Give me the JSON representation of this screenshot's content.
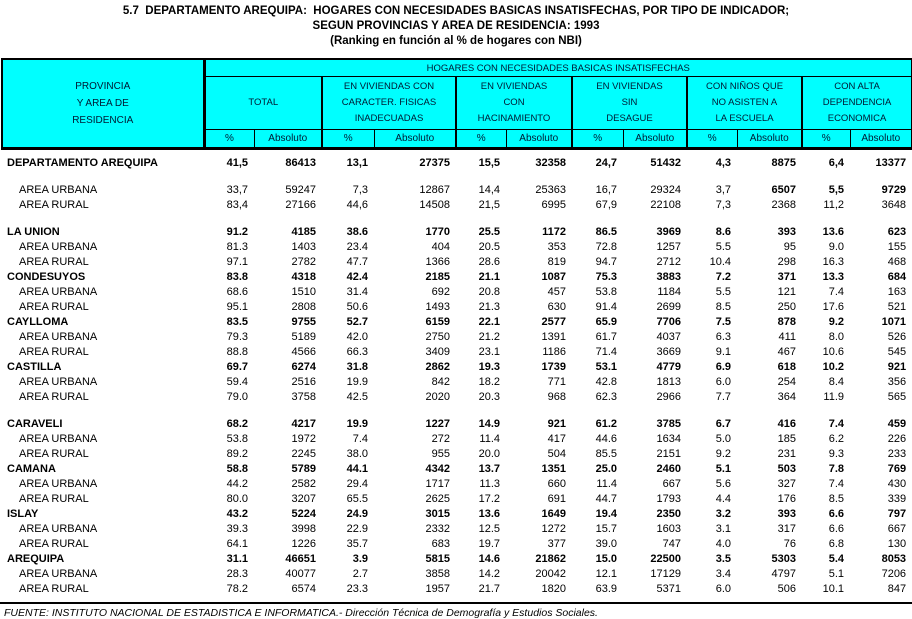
{
  "title": {
    "line1": "5.7  DEPARTAMENTO AREQUIPA:  HOGARES CON NECESIDADES BASICAS INSATISFECHAS, POR TIPO DE INDICADOR;",
    "line2": "SEGUN PROVINCIAS Y AREA DE RESIDENCIA: 1993",
    "line3": "(Ranking en función al % de hogares con NBI)"
  },
  "colors": {
    "header_bg": "#00FFFF",
    "header_text": "#001933",
    "body_text": "#000000",
    "border": "#000000"
  },
  "table": {
    "row_header_lines": [
      "PROVINCIA",
      "Y AREA DE",
      "RESIDENCIA"
    ],
    "super_header": "HOGARES CON NECESIDADES BASICAS INSATISFECHAS",
    "groups": [
      {
        "lines": [
          "TOTAL"
        ]
      },
      {
        "lines": [
          "EN VIVIENDAS CON",
          "CARACTER. FISICAS",
          "INADECUADAS"
        ]
      },
      {
        "lines": [
          "EN VIVIENDAS",
          "CON",
          "HACINAMIENTO"
        ]
      },
      {
        "lines": [
          "EN VIVIENDAS",
          "SIN",
          "DESAGUE"
        ]
      },
      {
        "lines": [
          "CON NIÑOS QUE",
          "NO ASISTEN A",
          "LA ESCUELA"
        ]
      },
      {
        "lines": [
          "CON ALTA",
          "DEPENDENCIA",
          "ECONOMICA"
        ]
      }
    ],
    "sub_headers": [
      "%",
      "Absoluto",
      "%",
      "Absoluto",
      "%",
      "Absoluto",
      "%",
      "Absoluto",
      "%",
      "Absoluto",
      "%",
      "Absoluto"
    ],
    "rows": [
      {
        "label": "DEPARTAMENTO AREQUIPA",
        "bold": true,
        "indent": 0,
        "values": [
          "41,5",
          "86413",
          "13,1",
          "27375",
          "15,5",
          "32358",
          "24,7",
          "51432",
          "4,3",
          "8875",
          "6,4",
          "13377"
        ]
      },
      {
        "type": "gap"
      },
      {
        "label": "AREA URBANA",
        "bold": false,
        "indent": 1,
        "bold_cells": [
          9,
          10,
          11
        ],
        "values": [
          "33,7",
          "59247",
          "7,3",
          "12867",
          "14,4",
          "25363",
          "16,7",
          "29324",
          "3,7",
          "6507",
          "5,5",
          "9729"
        ]
      },
      {
        "label": "AREA RURAL",
        "bold": false,
        "indent": 1,
        "values": [
          "83,4",
          "27166",
          "44,6",
          "14508",
          "21,5",
          "6995",
          "67,9",
          "22108",
          "7,3",
          "2368",
          "11,2",
          "3648"
        ]
      },
      {
        "type": "gap"
      },
      {
        "label": "LA UNION",
        "bold": true,
        "indent": 0,
        "values": [
          "91.2",
          "4185",
          "38.6",
          "1770",
          "25.5",
          "1172",
          "86.5",
          "3969",
          "8.6",
          "393",
          "13.6",
          "623"
        ]
      },
      {
        "label": "AREA URBANA",
        "bold": false,
        "indent": 1,
        "values": [
          "81.3",
          "1403",
          "23.4",
          "404",
          "20.5",
          "353",
          "72.8",
          "1257",
          "5.5",
          "95",
          "9.0",
          "155"
        ]
      },
      {
        "label": "AREA RURAL",
        "bold": false,
        "indent": 1,
        "values": [
          "97.1",
          "2782",
          "47.7",
          "1366",
          "28.6",
          "819",
          "94.7",
          "2712",
          "10.4",
          "298",
          "16.3",
          "468"
        ]
      },
      {
        "label": "CONDESUYOS",
        "bold": true,
        "indent": 0,
        "values": [
          "83.8",
          "4318",
          "42.4",
          "2185",
          "21.1",
          "1087",
          "75.3",
          "3883",
          "7.2",
          "371",
          "13.3",
          "684"
        ]
      },
      {
        "label": "AREA URBANA",
        "bold": false,
        "indent": 1,
        "values": [
          "68.6",
          "1510",
          "31.4",
          "692",
          "20.8",
          "457",
          "53.8",
          "1184",
          "5.5",
          "121",
          "7.4",
          "163"
        ]
      },
      {
        "label": "AREA RURAL",
        "bold": false,
        "indent": 1,
        "values": [
          "95.1",
          "2808",
          "50.6",
          "1493",
          "21.3",
          "630",
          "91.4",
          "2699",
          "8.5",
          "250",
          "17.6",
          "521"
        ]
      },
      {
        "label": "CAYLLOMA",
        "bold": true,
        "indent": 0,
        "values": [
          "83.5",
          "9755",
          "52.7",
          "6159",
          "22.1",
          "2577",
          "65.9",
          "7706",
          "7.5",
          "878",
          "9.2",
          "1071"
        ]
      },
      {
        "label": "AREA URBANA",
        "bold": false,
        "indent": 1,
        "values": [
          "79.3",
          "5189",
          "42.0",
          "2750",
          "21.2",
          "1391",
          "61.7",
          "4037",
          "6.3",
          "411",
          "8.0",
          "526"
        ]
      },
      {
        "label": "AREA RURAL",
        "bold": false,
        "indent": 1,
        "values": [
          "88.8",
          "4566",
          "66.3",
          "3409",
          "23.1",
          "1186",
          "71.4",
          "3669",
          "9.1",
          "467",
          "10.6",
          "545"
        ]
      },
      {
        "label": "CASTILLA",
        "bold": true,
        "indent": 0,
        "values": [
          "69.7",
          "6274",
          "31.8",
          "2862",
          "19.3",
          "1739",
          "53.1",
          "4779",
          "6.9",
          "618",
          "10.2",
          "921"
        ]
      },
      {
        "label": "AREA URBANA",
        "bold": false,
        "indent": 1,
        "values": [
          "59.4",
          "2516",
          "19.9",
          "842",
          "18.2",
          "771",
          "42.8",
          "1813",
          "6.0",
          "254",
          "8.4",
          "356"
        ]
      },
      {
        "label": "AREA RURAL",
        "bold": false,
        "indent": 1,
        "values": [
          "79.0",
          "3758",
          "42.5",
          "2020",
          "20.3",
          "968",
          "62.3",
          "2966",
          "7.7",
          "364",
          "11.9",
          "565"
        ]
      },
      {
        "type": "gap"
      },
      {
        "label": "CARAVELI",
        "bold": true,
        "indent": 0,
        "values": [
          "68.2",
          "4217",
          "19.9",
          "1227",
          "14.9",
          "921",
          "61.2",
          "3785",
          "6.7",
          "416",
          "7.4",
          "459"
        ]
      },
      {
        "label": "AREA URBANA",
        "bold": false,
        "indent": 1,
        "values": [
          "53.8",
          "1972",
          "7.4",
          "272",
          "11.4",
          "417",
          "44.6",
          "1634",
          "5.0",
          "185",
          "6.2",
          "226"
        ]
      },
      {
        "label": "AREA RURAL",
        "bold": false,
        "indent": 1,
        "values": [
          "89.2",
          "2245",
          "38.0",
          "955",
          "20.0",
          "504",
          "85.5",
          "2151",
          "9.2",
          "231",
          "9.3",
          "233"
        ]
      },
      {
        "label": "CAMANA",
        "bold": true,
        "indent": 0,
        "values": [
          "58.8",
          "5789",
          "44.1",
          "4342",
          "13.7",
          "1351",
          "25.0",
          "2460",
          "5.1",
          "503",
          "7.8",
          "769"
        ]
      },
      {
        "label": "AREA URBANA",
        "bold": false,
        "indent": 1,
        "values": [
          "44.2",
          "2582",
          "29.4",
          "1717",
          "11.3",
          "660",
          "11.4",
          "667",
          "5.6",
          "327",
          "7.4",
          "430"
        ]
      },
      {
        "label": "AREA RURAL",
        "bold": false,
        "indent": 1,
        "values": [
          "80.0",
          "3207",
          "65.5",
          "2625",
          "17.2",
          "691",
          "44.7",
          "1793",
          "4.4",
          "176",
          "8.5",
          "339"
        ]
      },
      {
        "label": "ISLAY",
        "bold": true,
        "indent": 0,
        "values": [
          "43.2",
          "5224",
          "24.9",
          "3015",
          "13.6",
          "1649",
          "19.4",
          "2350",
          "3.2",
          "393",
          "6.6",
          "797"
        ]
      },
      {
        "label": "AREA URBANA",
        "bold": false,
        "indent": 1,
        "values": [
          "39.3",
          "3998",
          "22.9",
          "2332",
          "12.5",
          "1272",
          "15.7",
          "1603",
          "3.1",
          "317",
          "6.6",
          "667"
        ]
      },
      {
        "label": "AREA RURAL",
        "bold": false,
        "indent": 1,
        "values": [
          "64.1",
          "1226",
          "35.7",
          "683",
          "19.7",
          "377",
          "39.0",
          "747",
          "4.0",
          "76",
          "6.8",
          "130"
        ]
      },
      {
        "label": "AREQUIPA",
        "bold": true,
        "indent": 0,
        "values": [
          "31.1",
          "46651",
          "3.9",
          "5815",
          "14.6",
          "21862",
          "15.0",
          "22500",
          "3.5",
          "5303",
          "5.4",
          "8053"
        ]
      },
      {
        "label": "AREA URBANA",
        "bold": false,
        "indent": 1,
        "values": [
          "28.3",
          "40077",
          "2.7",
          "3858",
          "14.2",
          "20042",
          "12.1",
          "17129",
          "3.4",
          "4797",
          "5.1",
          "7206"
        ]
      },
      {
        "label": "AREA RURAL",
        "bold": false,
        "indent": 1,
        "values": [
          "78.2",
          "6574",
          "23.3",
          "1957",
          "21.7",
          "1820",
          "63.9",
          "5371",
          "6.0",
          "506",
          "10.1",
          "847"
        ]
      }
    ]
  },
  "footer": {
    "source": "FUENTE: INSTITUTO NACIONAL DE ESTADISTICA E INFORMATICA.- Dirección Técnica de Demografía y Estudios Sociales."
  }
}
